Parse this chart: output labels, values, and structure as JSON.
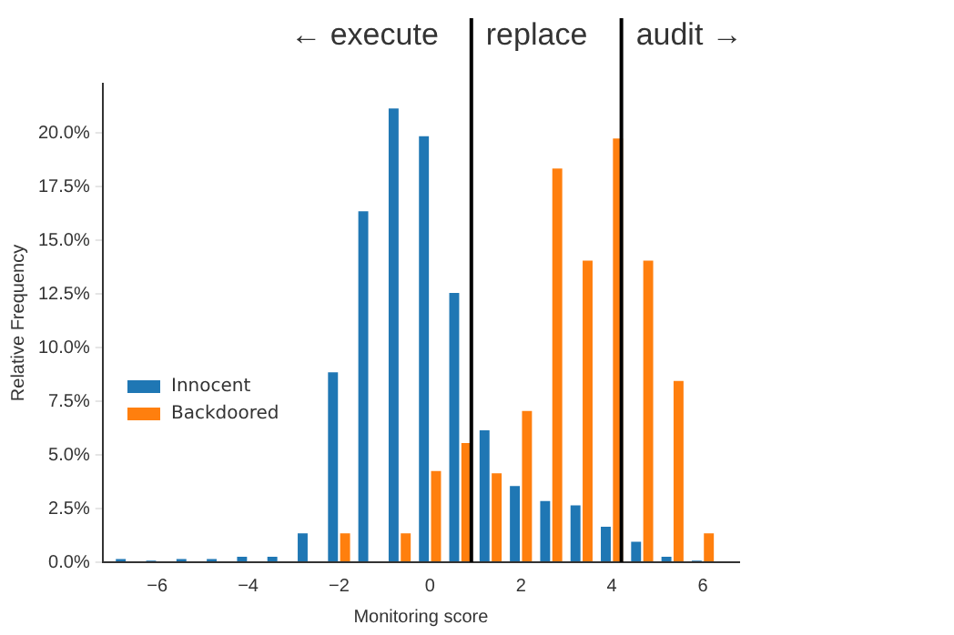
{
  "chart_data": {
    "type": "histogram",
    "xlabel": "Monitoring score",
    "ylabel": "Relative Frequency",
    "bins": [
      -7,
      -6.333,
      -5.667,
      -5,
      -4.333,
      -3.667,
      -3,
      -2.333,
      -1.667,
      -1,
      -0.333,
      0.333,
      1,
      1.667,
      2.333,
      3,
      3.667,
      4.333,
      5,
      5.667,
      6.333
    ],
    "series": [
      {
        "name": "Innocent",
        "color": "#1f77b4",
        "values": [
          0.2,
          0.1,
          0.2,
          0.2,
          0.3,
          0.3,
          1.4,
          8.9,
          16.4,
          21.2,
          19.9,
          12.6,
          6.2,
          3.6,
          2.9,
          2.7,
          1.7,
          1.0,
          0.3,
          0.1
        ]
      },
      {
        "name": "Backdoored",
        "color": "#ff7f0e",
        "values": [
          0,
          0,
          0,
          0,
          0,
          0,
          0,
          1.4,
          0,
          1.4,
          4.3,
          5.6,
          4.2,
          7.1,
          18.4,
          14.1,
          19.8,
          14.1,
          8.5,
          1.4
        ]
      }
    ],
    "xlim": [
      -7.2,
      6.8
    ],
    "xticks": [
      {
        "value": -6,
        "label": "−6"
      },
      {
        "value": -4,
        "label": "−4"
      },
      {
        "value": -2,
        "label": "−2"
      },
      0,
      2,
      4,
      6
    ],
    "ylim": [
      0,
      22.3
    ],
    "yticks": [
      {
        "value": 0,
        "label": "0.0%"
      },
      {
        "value": 2.5,
        "label": "2.5%"
      },
      {
        "value": 5,
        "label": "5.0%"
      },
      {
        "value": 7.5,
        "label": "7.5%"
      },
      {
        "value": 10,
        "label": "10.0%"
      },
      {
        "value": 12.5,
        "label": "12.5%"
      },
      {
        "value": 15,
        "label": "15.0%"
      },
      {
        "value": 17.5,
        "label": "17.5%"
      },
      {
        "value": 20,
        "label": "20.0%"
      }
    ],
    "ref_lines": [
      {
        "axis": "x",
        "value": 0.91,
        "color": "#000000"
      },
      {
        "axis": "x",
        "value": 4.21,
        "color": "#000000"
      }
    ],
    "annotations": [
      "← execute",
      "replace",
      "audit →"
    ],
    "legend": "center left",
    "grid": false
  }
}
